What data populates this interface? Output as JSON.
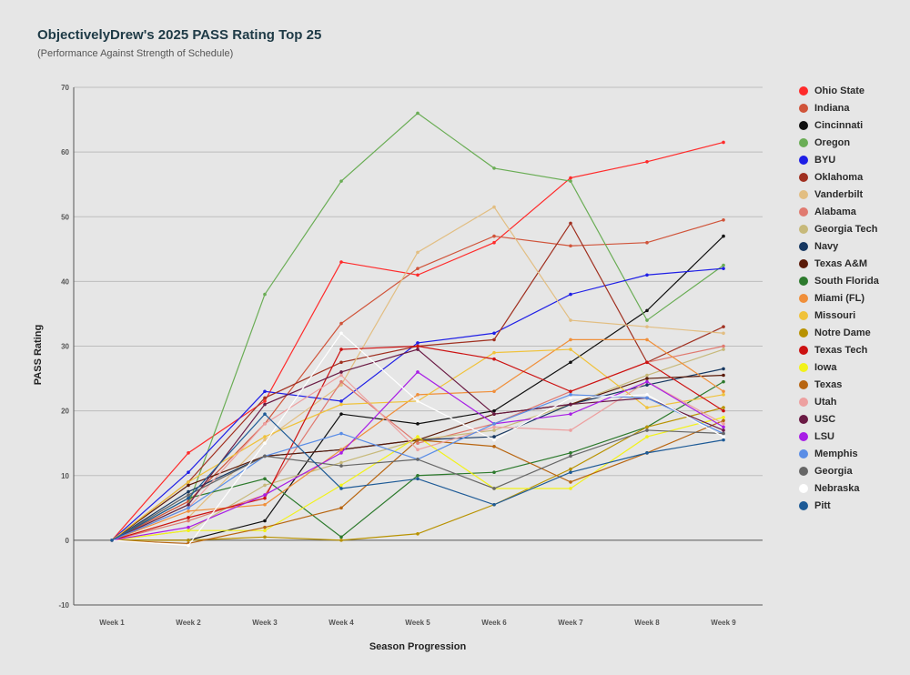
{
  "chart_data": {
    "type": "line",
    "title": "ObjectivelyDrew's 2025 PASS Rating Top 25",
    "subtitle": "(Performance Against Strength of Schedule)",
    "xlabel": "Season Progression",
    "ylabel": "PASS Rating",
    "ylim": [
      -10,
      70
    ],
    "yticks": [
      -10,
      0,
      10,
      20,
      30,
      40,
      50,
      60,
      70
    ],
    "grid": true,
    "legend_position": "right",
    "categories": [
      "Week 1",
      "Week 2",
      "Week 3",
      "Week 4",
      "Week 5",
      "Week 6",
      "Week 7",
      "Week 8",
      "Week 9"
    ],
    "series": [
      {
        "name": "Ohio State",
        "color": "#ff2b2b",
        "values": [
          0,
          13.5,
          21.5,
          43,
          41,
          46,
          56,
          58.5,
          61.5
        ]
      },
      {
        "name": "Indiana",
        "color": "#d0543a",
        "values": [
          0,
          6,
          18,
          33.5,
          42,
          47,
          45.5,
          46,
          49.5
        ]
      },
      {
        "name": "Cincinnati",
        "color": "#111111",
        "values": [
          0,
          0,
          3,
          19.5,
          18,
          20,
          27.5,
          35.5,
          47
        ]
      },
      {
        "name": "Oregon",
        "color": "#6aad55",
        "values": [
          0,
          5.5,
          38,
          55.5,
          66,
          57.5,
          55.5,
          34,
          42.5
        ]
      },
      {
        "name": "BYU",
        "color": "#1f1fe6",
        "values": [
          0,
          10.5,
          23,
          21.5,
          30.5,
          32,
          38,
          41,
          42
        ]
      },
      {
        "name": "Oklahoma",
        "color": "#a03020",
        "values": [
          0,
          9,
          22,
          27.5,
          30,
          31,
          49,
          27.5,
          33
        ]
      },
      {
        "name": "Vanderbilt",
        "color": "#e2be82",
        "values": [
          0,
          3.5,
          15.5,
          24,
          44.5,
          51.5,
          34,
          33,
          32
        ]
      },
      {
        "name": "Alabama",
        "color": "#e07a70",
        "values": [
          0,
          3,
          7,
          24.5,
          15,
          18,
          23,
          27.5,
          30
        ]
      },
      {
        "name": "Georgia Tech",
        "color": "#c7b97a",
        "values": [
          0,
          1.5,
          8.5,
          12,
          15.5,
          17,
          21,
          25.5,
          29.5
        ]
      },
      {
        "name": "Navy",
        "color": "#163760",
        "values": [
          0,
          7.5,
          13,
          14,
          15.5,
          16,
          21,
          24,
          26.5
        ]
      },
      {
        "name": "Texas A&M",
        "color": "#5a1a08",
        "values": [
          0,
          8.5,
          13,
          14,
          15.5,
          19.5,
          21,
          25,
          25.5
        ]
      },
      {
        "name": "South Florida",
        "color": "#2d7a2d",
        "values": [
          0,
          6.5,
          9.5,
          0.5,
          10,
          10.5,
          13.5,
          17.5,
          24.5
        ]
      },
      {
        "name": "Miami (FL)",
        "color": "#f08f3a",
        "values": [
          0,
          4.5,
          5.5,
          14,
          22.5,
          23,
          31,
          31,
          23
        ]
      },
      {
        "name": "Missouri",
        "color": "#f0c23a",
        "values": [
          0,
          9,
          16,
          21,
          21.5,
          29,
          29.5,
          20.5,
          22.5
        ]
      },
      {
        "name": "Notre Dame",
        "color": "#b89200",
        "values": [
          0,
          0,
          0.5,
          0,
          1,
          5.5,
          11,
          17.5,
          20.5
        ]
      },
      {
        "name": "Texas Tech",
        "color": "#cc1111",
        "values": [
          0,
          3.5,
          6.5,
          29.5,
          30,
          28,
          23,
          27.5,
          20
        ]
      },
      {
        "name": "Iowa",
        "color": "#f2f21a",
        "values": [
          0,
          1.5,
          1.5,
          8.5,
          16,
          8,
          8,
          16,
          19
        ]
      },
      {
        "name": "Texas",
        "color": "#b86510",
        "values": [
          0,
          -0.5,
          2,
          5,
          15.5,
          14.5,
          9,
          13.5,
          18.5
        ]
      },
      {
        "name": "Utah",
        "color": "#eda0a0",
        "values": [
          0,
          5,
          18,
          25.5,
          14,
          17.5,
          17,
          24.5,
          18
        ]
      },
      {
        "name": "USC",
        "color": "#6a1a44",
        "values": [
          0,
          5.5,
          21,
          26,
          29.5,
          19.5,
          21,
          22,
          17
        ]
      },
      {
        "name": "LSU",
        "color": "#a81ee6",
        "values": [
          0,
          2,
          7,
          13.5,
          26,
          18,
          19.5,
          24.5,
          17.5
        ]
      },
      {
        "name": "Memphis",
        "color": "#5a8de6",
        "values": [
          0,
          5,
          13,
          16.5,
          12.5,
          18,
          22.5,
          22,
          16.5
        ]
      },
      {
        "name": "Georgia",
        "color": "#666666",
        "values": [
          0,
          7,
          13,
          11.5,
          12.5,
          8,
          13,
          17,
          16.5
        ]
      },
      {
        "name": "Nebraska",
        "color": "#ffffff",
        "values": [
          0,
          -0.8,
          15,
          32,
          21.5,
          15.5,
          22,
          22.5,
          16
        ]
      },
      {
        "name": "Pitt",
        "color": "#1d5a96",
        "values": [
          0,
          6.5,
          19.5,
          8,
          9.5,
          5.5,
          10.5,
          13.5,
          15.5
        ]
      }
    ]
  }
}
